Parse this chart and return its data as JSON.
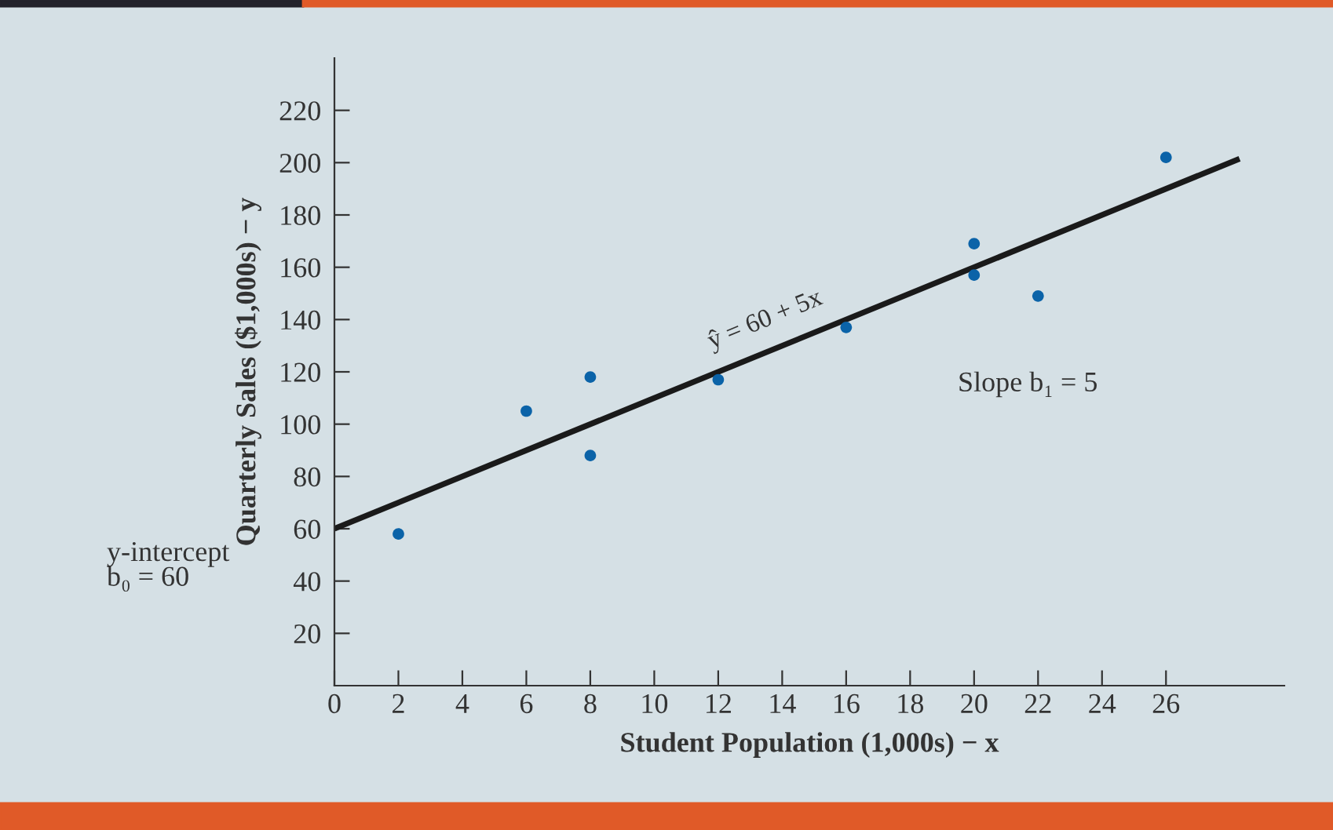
{
  "chart_data": {
    "type": "scatter",
    "xlabel": "Student Population (1,000s) − x",
    "ylabel": "Quarterly Sales ($1,000s) − y",
    "x": [
      2,
      6,
      8,
      8,
      12,
      16,
      20,
      20,
      22,
      26
    ],
    "series": [
      {
        "color": "#0b63a8",
        "marker": "circle",
        "values": [
          58,
          105,
          88,
          118,
          117,
          137,
          157,
          169,
          149,
          202
        ]
      },
      {
        "type": "line",
        "color": "#1a1a1a",
        "line_style": "solid",
        "x": [
          0,
          28.3
        ],
        "values": [
          60,
          201.5
        ]
      }
    ],
    "xlim": [
      0,
      29.7
    ],
    "ylim": [
      0,
      240
    ],
    "xticks": [
      0,
      2,
      4,
      6,
      8,
      10,
      12,
      14,
      16,
      18,
      20,
      22,
      24,
      26
    ],
    "yticks": [
      20,
      40,
      60,
      80,
      100,
      120,
      140,
      160,
      180,
      200,
      220
    ],
    "grid": false,
    "legend": false,
    "annotations": [
      {
        "text": "ŷ = 60 + 5x",
        "x": 12,
        "y": 120
      },
      "Slope b₁ = 5",
      "y-intercept\nb₀ = 60"
    ]
  }
}
